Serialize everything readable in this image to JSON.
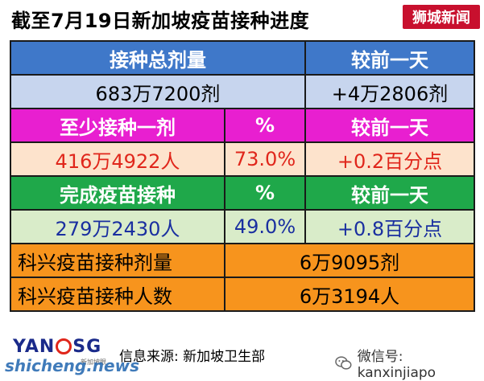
{
  "title": "截至7月19日新加坡疫苗接种进度",
  "brand_tag": "狮城新闻",
  "table": {
    "section1": {
      "header": [
        "接种总剂量",
        "较前一天"
      ],
      "values": [
        "683万7200剂",
        "+4万2806剂"
      ]
    },
    "section2": {
      "header": [
        "至少接种一剂",
        "%",
        "较前一天"
      ],
      "values": [
        "416万4922人",
        "73.0%",
        "+0.2百分点"
      ]
    },
    "section3": {
      "header": [
        "完成疫苗接种",
        "%",
        "较前一天"
      ],
      "values": [
        "279万2430人",
        "49.0%",
        "+0.8百分点"
      ]
    },
    "kexing": [
      {
        "label": "科兴疫苗接种剂量",
        "value": "6万9095剂"
      },
      {
        "label": "科兴疫苗接种人数",
        "value": "6万3194人"
      }
    ]
  },
  "footer": {
    "logo_left": "YAN",
    "logo_right": "SG",
    "logo_sub": "新加坡眼",
    "source": "信息来源:  新加坡卫生部",
    "wechat": "微信号: kanxinjiapo",
    "watermark": "shicheng.news"
  },
  "colors": {
    "header_blue": "#3f78c9",
    "header_magenta": "#e81fd0",
    "header_green": "#1fa84a",
    "orange": "#f7941d",
    "brand_red": "#c8102e"
  }
}
